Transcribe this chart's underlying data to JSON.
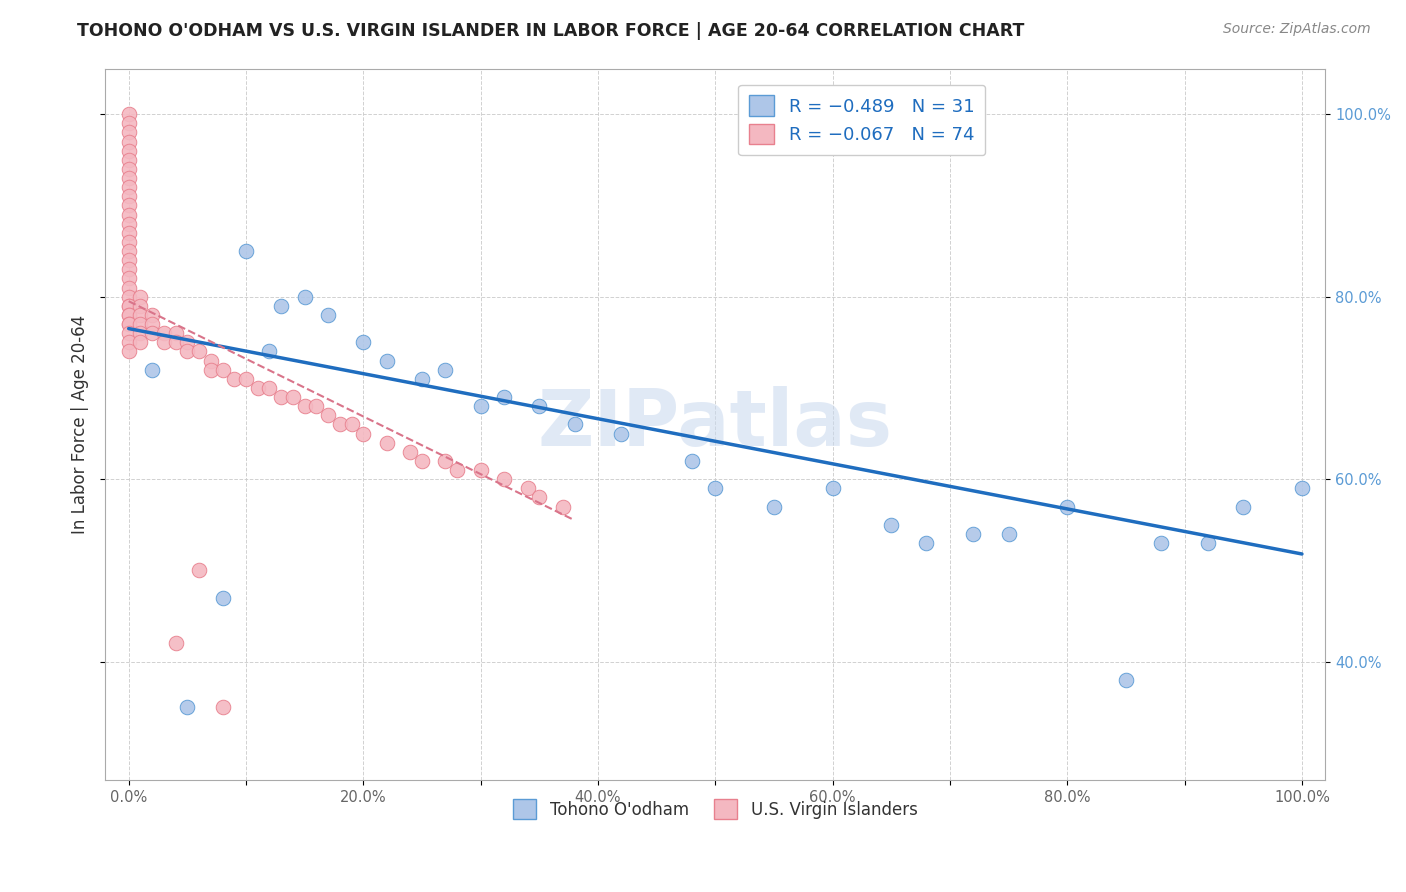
{
  "title": "TOHONO O'ODHAM VS U.S. VIRGIN ISLANDER IN LABOR FORCE | AGE 20-64 CORRELATION CHART",
  "source": "Source: ZipAtlas.com",
  "ylabel": "In Labor Force | Age 20-64",
  "xlim": [
    -0.02,
    1.02
  ],
  "ylim": [
    0.27,
    1.05
  ],
  "xticks": [
    0.0,
    0.1,
    0.2,
    0.3,
    0.4,
    0.5,
    0.6,
    0.7,
    0.8,
    0.9,
    1.0
  ],
  "yticks": [
    0.4,
    0.6,
    0.8,
    1.0
  ],
  "xtick_labels": [
    "0.0%",
    "",
    "20.0%",
    "",
    "40.0%",
    "",
    "60.0%",
    "",
    "80.0%",
    "",
    "100.0%"
  ],
  "ytick_labels": [
    "40.0%",
    "60.0%",
    "80.0%",
    "100.0%"
  ],
  "blue_color": "#aec6e8",
  "blue_edge": "#5b9bd5",
  "pink_color": "#f4b8c1",
  "pink_edge": "#e8808e",
  "trend_blue": "#1f6dbf",
  "trend_pink": "#d9748a",
  "watermark": "ZIPatlas",
  "legend_r1": "R = −0.489   N = 31",
  "legend_r2": "R = −0.067   N = 74",
  "legend_label1": "Tohono O'odham",
  "legend_label2": "U.S. Virgin Islanders",
  "blue_x": [
    0.02,
    0.1,
    0.13,
    0.15,
    0.17,
    0.2,
    0.22,
    0.25,
    0.27,
    0.3,
    0.32,
    0.35,
    0.38,
    0.42,
    0.48,
    0.5,
    0.55,
    0.6,
    0.65,
    0.68,
    0.72,
    0.75,
    0.8,
    0.85,
    0.88,
    0.92,
    0.95,
    1.0,
    0.05,
    0.08,
    0.12
  ],
  "blue_y": [
    0.72,
    0.85,
    0.79,
    0.8,
    0.78,
    0.75,
    0.73,
    0.71,
    0.72,
    0.68,
    0.69,
    0.68,
    0.66,
    0.65,
    0.62,
    0.59,
    0.57,
    0.59,
    0.55,
    0.53,
    0.54,
    0.54,
    0.57,
    0.38,
    0.53,
    0.53,
    0.57,
    0.59,
    0.35,
    0.47,
    0.74
  ],
  "pink_x": [
    0.0,
    0.0,
    0.0,
    0.0,
    0.0,
    0.0,
    0.0,
    0.0,
    0.0,
    0.0,
    0.0,
    0.0,
    0.0,
    0.0,
    0.0,
    0.0,
    0.0,
    0.0,
    0.0,
    0.0,
    0.0,
    0.0,
    0.0,
    0.0,
    0.0,
    0.0,
    0.0,
    0.0,
    0.0,
    0.0,
    0.01,
    0.01,
    0.01,
    0.01,
    0.01,
    0.01,
    0.02,
    0.02,
    0.02,
    0.03,
    0.03,
    0.04,
    0.04,
    0.05,
    0.05,
    0.06,
    0.07,
    0.07,
    0.08,
    0.09,
    0.1,
    0.11,
    0.12,
    0.13,
    0.14,
    0.15,
    0.16,
    0.17,
    0.18,
    0.19,
    0.2,
    0.22,
    0.24,
    0.25,
    0.27,
    0.28,
    0.3,
    0.32,
    0.34,
    0.35,
    0.37,
    0.04,
    0.06,
    0.08
  ],
  "pink_y": [
    1.0,
    0.99,
    0.98,
    0.97,
    0.96,
    0.95,
    0.94,
    0.93,
    0.92,
    0.91,
    0.9,
    0.89,
    0.88,
    0.87,
    0.86,
    0.85,
    0.84,
    0.83,
    0.82,
    0.81,
    0.8,
    0.79,
    0.79,
    0.78,
    0.78,
    0.77,
    0.77,
    0.76,
    0.75,
    0.74,
    0.8,
    0.79,
    0.78,
    0.77,
    0.76,
    0.75,
    0.78,
    0.77,
    0.76,
    0.76,
    0.75,
    0.76,
    0.75,
    0.75,
    0.74,
    0.74,
    0.73,
    0.72,
    0.72,
    0.71,
    0.71,
    0.7,
    0.7,
    0.69,
    0.69,
    0.68,
    0.68,
    0.67,
    0.66,
    0.66,
    0.65,
    0.64,
    0.63,
    0.62,
    0.62,
    0.61,
    0.61,
    0.6,
    0.59,
    0.58,
    0.57,
    0.42,
    0.5,
    0.35
  ]
}
